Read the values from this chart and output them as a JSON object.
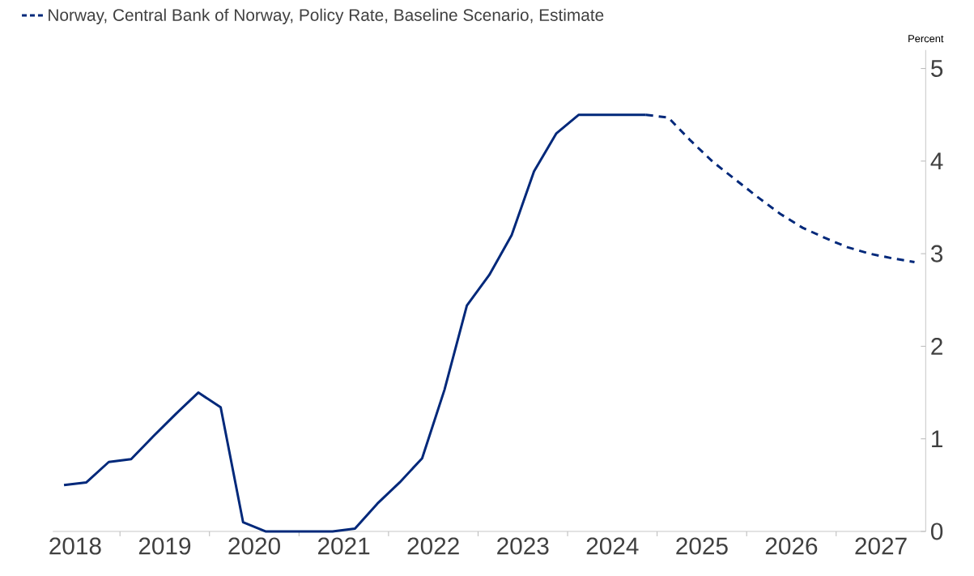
{
  "chart_data": {
    "type": "line",
    "ylabel": "Percent",
    "xlim": [
      2018.25,
      2028
    ],
    "ylim": [
      0,
      5.2
    ],
    "xticks": [
      {
        "value": 2018.5,
        "label": "2018"
      },
      {
        "value": 2019,
        "label": null
      },
      {
        "value": 2019.5,
        "label": "2019"
      },
      {
        "value": 2020,
        "label": null
      },
      {
        "value": 2020.5,
        "label": "2020"
      },
      {
        "value": 2021,
        "label": null
      },
      {
        "value": 2021.5,
        "label": "2021"
      },
      {
        "value": 2022,
        "label": null
      },
      {
        "value": 2022.5,
        "label": "2022"
      },
      {
        "value": 2023,
        "label": null
      },
      {
        "value": 2023.5,
        "label": "2023"
      },
      {
        "value": 2024,
        "label": null
      },
      {
        "value": 2024.5,
        "label": "2024"
      },
      {
        "value": 2025,
        "label": null
      },
      {
        "value": 2025.5,
        "label": "2025"
      },
      {
        "value": 2026,
        "label": null
      },
      {
        "value": 2026.5,
        "label": "2026"
      },
      {
        "value": 2027,
        "label": null
      },
      {
        "value": 2027.5,
        "label": "2027"
      }
    ],
    "yticks": [
      0,
      1,
      2,
      3,
      4,
      5
    ],
    "grid": false,
    "legend": "top left",
    "marker": "none",
    "series": [
      {
        "color": "#00287a",
        "line_style": "solid",
        "x": [
          2018.375,
          2018.625,
          2018.875,
          2019.125,
          2019.375,
          2019.625,
          2019.875,
          2020.125,
          2020.375,
          2020.625,
          2020.875,
          2021.125,
          2021.375,
          2021.625,
          2021.875,
          2022.125,
          2022.375,
          2022.625,
          2022.875,
          2023.125,
          2023.375,
          2023.625,
          2023.875,
          2024.125,
          2024.375,
          2024.625,
          2024.875
        ],
        "values": [
          0.5,
          0.53,
          0.75,
          0.78,
          1.03,
          1.27,
          1.5,
          1.34,
          0.1,
          0,
          0,
          0,
          0,
          0.03,
          0.3,
          0.53,
          0.79,
          1.53,
          2.44,
          2.77,
          3.2,
          3.89,
          4.3,
          4.5,
          4.5,
          4.5,
          4.5
        ]
      },
      {
        "name": "Norway, Central Bank of Norway, Policy Rate, Baseline Scenario, Estimate",
        "color": "#00287a",
        "line_style": "dashed",
        "x": [
          2024.875,
          2025.125,
          2025.375,
          2025.625,
          2025.875,
          2026.125,
          2026.375,
          2026.625,
          2026.875,
          2027.125,
          2027.375,
          2027.625,
          2027.875
        ],
        "values": [
          4.5,
          4.47,
          4.22,
          3.99,
          3.8,
          3.61,
          3.43,
          3.28,
          3.17,
          3.07,
          3.0,
          2.95,
          2.91
        ]
      }
    ]
  }
}
